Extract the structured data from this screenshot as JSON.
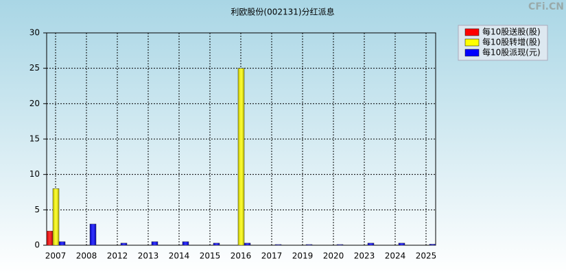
{
  "chart_data": {
    "type": "bar",
    "title": "利欧股份(002131)分红派息",
    "watermark": "CFi.CN",
    "categories": [
      "2007",
      "2008",
      "2012",
      "2013",
      "2014",
      "2015",
      "2016",
      "2017",
      "2019",
      "2020",
      "2023",
      "2024",
      "2025"
    ],
    "series": [
      {
        "name": "每10股送股(股)",
        "color": "#ff0000",
        "values": [
          2,
          null,
          null,
          null,
          null,
          null,
          null,
          null,
          null,
          null,
          null,
          null,
          null
        ]
      },
      {
        "name": "每10股转增(股)",
        "color": "#ffff00",
        "values": [
          8,
          null,
          null,
          null,
          null,
          null,
          25,
          null,
          null,
          null,
          null,
          null,
          null
        ]
      },
      {
        "name": "每10股派现(元)",
        "color": "#0000ff",
        "values": [
          0.5,
          3,
          0.3,
          0.5,
          0.5,
          0.3,
          0.3,
          0.1,
          0.1,
          0.1,
          0.3,
          0.3,
          0.15
        ]
      }
    ],
    "ylim": [
      0,
      30
    ],
    "yticks": [
      0,
      5,
      10,
      15,
      20,
      25,
      30
    ],
    "grid": true
  }
}
